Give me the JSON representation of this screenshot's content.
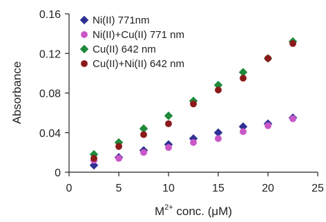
{
  "chart_data": {
    "type": "scatter",
    "xlabel": {
      "base": "M",
      "sup": "2+",
      "rest": " conc. (",
      "mu": "μ",
      "unit": "M)"
    },
    "ylabel": "Absorbance",
    "xlim": [
      0,
      25
    ],
    "ylim": [
      0,
      0.16
    ],
    "xticks": [
      "0",
      "5",
      "10",
      "15",
      "20",
      "25"
    ],
    "yticks": [
      "0",
      "0.04",
      "0.08",
      "0.12",
      "0.16"
    ],
    "grid": false,
    "legend_position": "top-left",
    "series": [
      {
        "name": "Ni(II) 771nm",
        "marker": "diamond",
        "color": "#2e3192",
        "x": [
          2.5,
          5,
          7.5,
          10,
          12.5,
          15,
          17.5,
          20,
          22.5
        ],
        "y": [
          0.007,
          0.015,
          0.022,
          0.028,
          0.034,
          0.04,
          0.046,
          0.049,
          0.055
        ]
      },
      {
        "name": "Ni(II)+Cu(II) 771 nm",
        "marker": "circle",
        "color": "#c957c7",
        "x": [
          2.5,
          5,
          7.5,
          10,
          12.5,
          15,
          17.5,
          20,
          22.5
        ],
        "y": [
          0.012,
          0.014,
          0.02,
          0.025,
          0.03,
          0.034,
          0.041,
          0.047,
          0.054
        ]
      },
      {
        "name": "Cu(II) 642 nm",
        "marker": "diamond",
        "color": "#1f8a3c",
        "x": [
          2.5,
          5,
          7.5,
          10,
          12.5,
          15,
          17.5,
          20,
          22.5
        ],
        "y": [
          0.018,
          0.03,
          0.044,
          0.057,
          0.072,
          0.088,
          0.101,
          0.115,
          0.132
        ]
      },
      {
        "name": "Cu(II)+Ni(II) 642 nm",
        "marker": "circle",
        "color": "#8b1a1a",
        "x": [
          2.5,
          5,
          7.5,
          10,
          12.5,
          15,
          17.5,
          20,
          22.5
        ],
        "y": [
          0.014,
          0.026,
          0.038,
          0.049,
          0.069,
          0.083,
          0.095,
          0.115,
          0.13
        ]
      }
    ]
  }
}
